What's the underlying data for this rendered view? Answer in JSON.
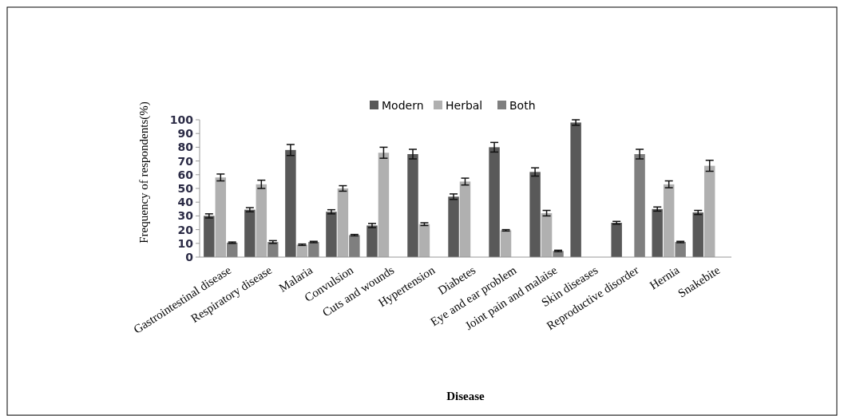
{
  "chart_data": {
    "type": "bar",
    "xlabel": "Disease",
    "ylabel": "Frequency of respondents(%)",
    "categories": [
      "Gastrointestinal disease",
      "Respiratory disease",
      "Malaria",
      "Convulsion",
      "Cuts and wounds",
      "Hypertension",
      "Diabetes",
      "Eye and ear problem",
      "Joint pain and malaise",
      "Skin diseases",
      "Reproductive disorder",
      "Hernia",
      "Snakebite"
    ],
    "series": [
      {
        "name": "Modern",
        "color": "#595959",
        "values": [
          30,
          34.5,
          78,
          33,
          23,
          75,
          44,
          80,
          62,
          98,
          25,
          35,
          32.5
        ],
        "errors": [
          1.5,
          1.5,
          4,
          1.5,
          1.5,
          3.5,
          2,
          3.5,
          3,
          2,
          1,
          1.5,
          1.5
        ]
      },
      {
        "name": "Herbal",
        "color": "#b0b0b0",
        "values": [
          58,
          53,
          9,
          50,
          76,
          24,
          55,
          19.5,
          32,
          null,
          null,
          53,
          66.5
        ],
        "errors": [
          2.5,
          3,
          0.5,
          2,
          4,
          1,
          2.5,
          0.5,
          2,
          null,
          null,
          2.5,
          4
        ]
      },
      {
        "name": "Both",
        "color": "#7f7f7f",
        "values": [
          10.5,
          11,
          11,
          16,
          null,
          null,
          null,
          null,
          4.5,
          null,
          75,
          11,
          null
        ],
        "errors": [
          0.5,
          1,
          0.5,
          0.5,
          null,
          null,
          null,
          null,
          0.5,
          null,
          3.5,
          0.5,
          null
        ]
      }
    ],
    "ylim": [
      0,
      100
    ],
    "yticks": [
      0,
      10,
      20,
      30,
      40,
      50,
      60,
      70,
      80,
      90,
      100
    ],
    "grid": false,
    "legend": "top"
  }
}
